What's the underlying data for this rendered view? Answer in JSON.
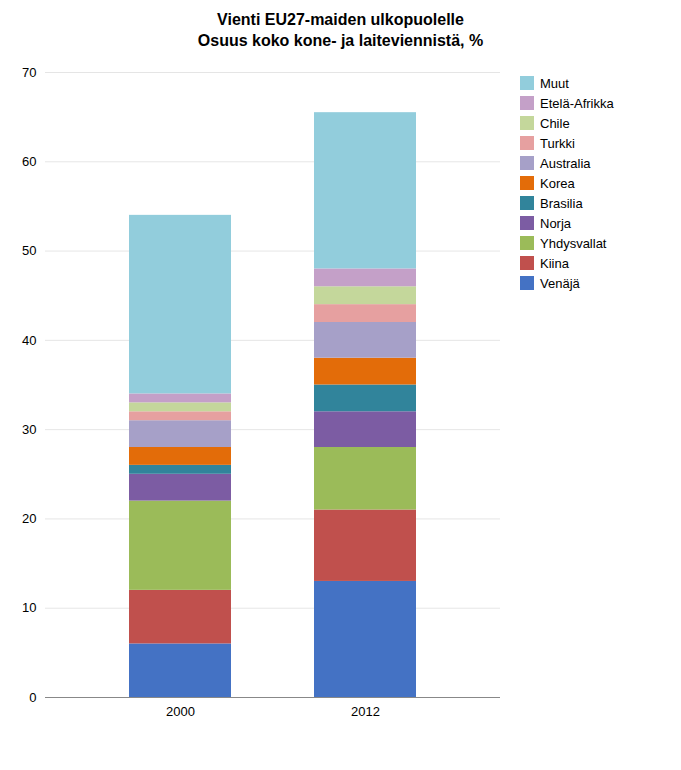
{
  "chart_data": {
    "type": "bar",
    "title": "Vienti EU27-maiden ulkopuolelle",
    "subtitle": "Osuus koko kone- ja laiteviennistä, %",
    "categories": [
      "2000",
      "2012"
    ],
    "series": [
      {
        "name": "Venäjä",
        "color": "#4472C4",
        "values": [
          6.0,
          13.0
        ]
      },
      {
        "name": "Kiina",
        "color": "#C0504D",
        "values": [
          6.0,
          8.0
        ]
      },
      {
        "name": "Yhdysvallat",
        "color": "#9BBB59",
        "values": [
          10.0,
          7.0
        ]
      },
      {
        "name": "Norja",
        "color": "#7C5CA3",
        "values": [
          3.0,
          4.0
        ]
      },
      {
        "name": "Brasilia",
        "color": "#31849B",
        "values": [
          1.0,
          3.0
        ]
      },
      {
        "name": "Korea",
        "color": "#E36C09",
        "values": [
          2.0,
          3.0
        ]
      },
      {
        "name": "Australia",
        "color": "#A6A0C8",
        "values": [
          3.0,
          4.0
        ]
      },
      {
        "name": "Turkki",
        "color": "#E6A0A0",
        "values": [
          1.0,
          2.0
        ]
      },
      {
        "name": "Chile",
        "color": "#C4D79B",
        "values": [
          1.0,
          2.0
        ]
      },
      {
        "name": "Etelä-Afrikka",
        "color": "#C4A0C8",
        "values": [
          1.0,
          2.0
        ]
      },
      {
        "name": "Muut",
        "color": "#92CDDC",
        "values": [
          20.0,
          17.5
        ]
      }
    ],
    "ylim": [
      0,
      70
    ],
    "yticks": [
      0,
      10,
      20,
      30,
      40,
      50,
      60,
      70
    ],
    "stacked": true,
    "grid": true,
    "legend": "right"
  }
}
